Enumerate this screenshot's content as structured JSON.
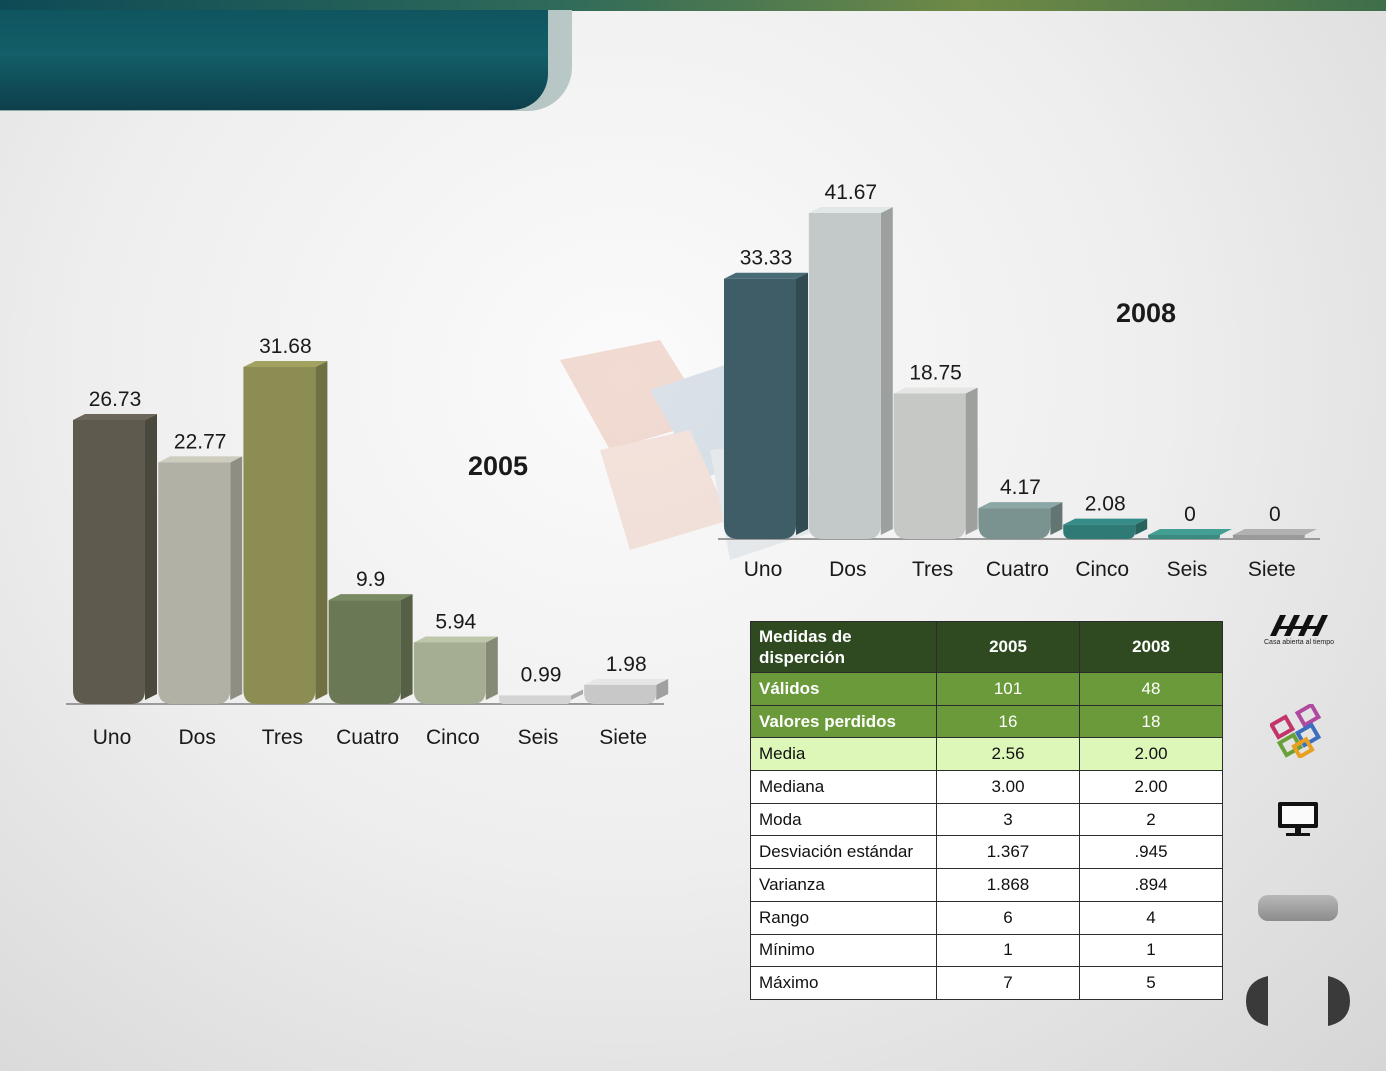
{
  "chart_data": [
    {
      "type": "bar",
      "title": "2005",
      "categories": [
        "Uno",
        "Dos",
        "Tres",
        "Cuatro",
        "Cinco",
        "Seis",
        "Siete"
      ],
      "values": [
        26.73,
        22.77,
        31.68,
        9.9,
        5.94,
        0.99,
        1.98
      ],
      "value_labels": [
        "26.73",
        "22.77",
        "31.68",
        "9.9",
        "5.94",
        "0.99",
        "1.98"
      ],
      "colors": [
        "#5e5a4e",
        "#b2b1a6",
        "#8c8d53",
        "#6a7856",
        "#a5ad93",
        "#d4d4d4",
        "#c8c8c8"
      ],
      "xlabel": "",
      "ylabel": "",
      "ylim": [
        0,
        35
      ]
    },
    {
      "type": "bar",
      "title": "2008",
      "categories": [
        "Uno",
        "Dos",
        "Tres",
        "Cuatro",
        "Cinco",
        "Seis",
        "Siete"
      ],
      "values": [
        33.33,
        41.67,
        18.75,
        4.17,
        2.08,
        0,
        0
      ],
      "value_labels": [
        "33.33",
        "41.67",
        "18.75",
        "4.17",
        "2.08",
        "0",
        "0"
      ],
      "colors": [
        "#3f5d66",
        "#c3c9c8",
        "#c6c8c5",
        "#7a9290",
        "#2f7a75",
        "#3a8a80",
        "#9a9a9a"
      ],
      "xlabel": "",
      "ylabel": "",
      "ylim": [
        0,
        45
      ]
    }
  ],
  "table": {
    "header": [
      "Medidas de disperción",
      "2005",
      "2008"
    ],
    "rows": [
      {
        "label": "Válidos",
        "v2005": "101",
        "v2008": "48",
        "style": "green"
      },
      {
        "label": "Valores perdidos",
        "v2005": "16",
        "v2008": "18",
        "style": "green"
      },
      {
        "label": "Media",
        "v2005": "2.56",
        "v2008": "2.00",
        "style": "light"
      },
      {
        "label": "Mediana",
        "v2005": "3.00",
        "v2008": "2.00",
        "style": "plain"
      },
      {
        "label": "Moda",
        "v2005": "3",
        "v2008": "2",
        "style": "plain"
      },
      {
        "label": "Desviación estándar",
        "v2005": "1.367",
        "v2008": ".945",
        "style": "plain"
      },
      {
        "label": "Varianza",
        "v2005": "1.868",
        "v2008": ".894",
        "style": "plain"
      },
      {
        "label": "Rango",
        "v2005": "6",
        "v2008": "4",
        "style": "plain"
      },
      {
        "label": "Mínimo",
        "v2005": "1",
        "v2008": "1",
        "style": "plain"
      },
      {
        "label": "Máximo",
        "v2005": "7",
        "v2008": "5",
        "style": "plain"
      }
    ]
  },
  "logo": {
    "caption": "Casa abierta al tiempo"
  },
  "icons": {
    "logo": "uam-logo-icon",
    "blocks": "colored-blocks-icon",
    "monitor": "monitor-icon",
    "prev": "nav-prev-icon",
    "next": "nav-next-icon"
  }
}
